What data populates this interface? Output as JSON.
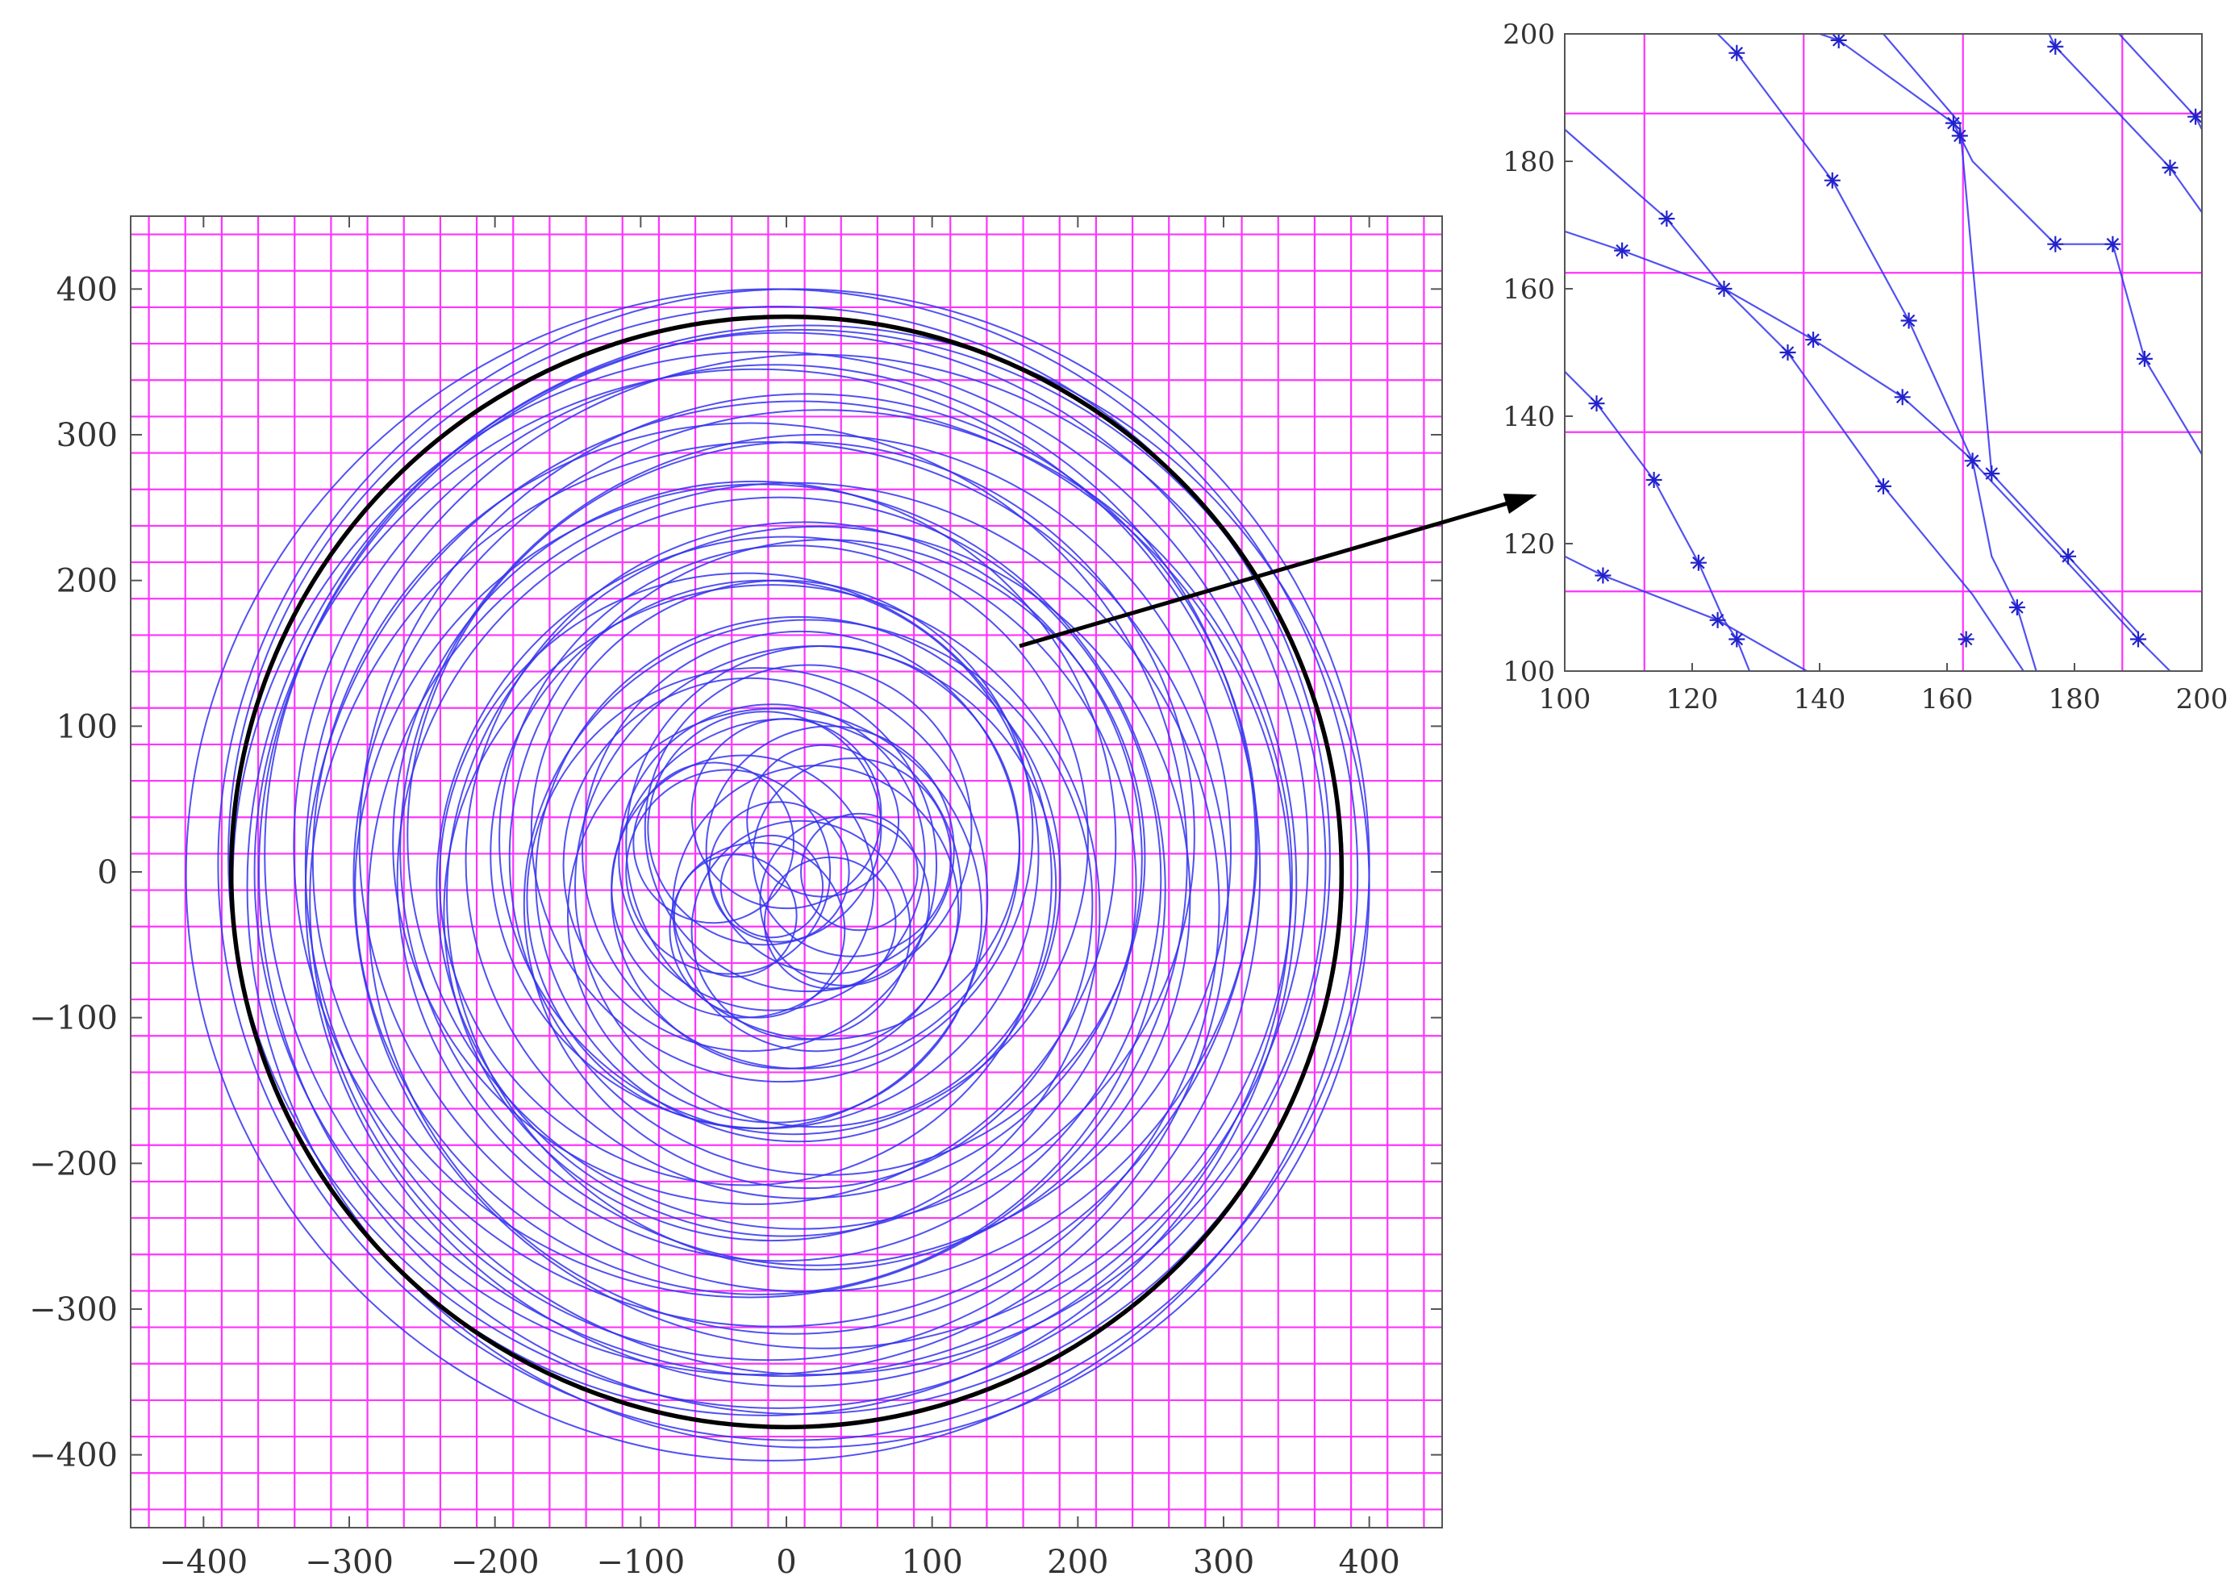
{
  "chart_data": [
    {
      "id": "main",
      "type": "line",
      "title": "",
      "xlabel": "",
      "ylabel": "",
      "xlim": [
        -450,
        450
      ],
      "ylim": [
        -450,
        450
      ],
      "x_ticks": [
        -400,
        -300,
        -200,
        -100,
        0,
        100,
        200,
        300,
        400
      ],
      "y_ticks": [
        -400,
        -300,
        -200,
        -100,
        0,
        100,
        200,
        300,
        400
      ],
      "x_tick_labels": [
        "−400",
        "−300",
        "−200",
        "−100",
        "0",
        "100",
        "200",
        "300",
        "400"
      ],
      "y_tick_labels": [
        "−400",
        "−300",
        "−200",
        "−100",
        "0",
        "100",
        "200",
        "300",
        "400"
      ],
      "grid": {
        "on": true,
        "spacing": 25,
        "offset": 12.5,
        "color": "#ff33ff"
      },
      "reference_circle": {
        "cx": 0,
        "cy": 0,
        "r": 381,
        "color": "#000000"
      },
      "circle_color": "#3333ee",
      "circles": [
        {
          "cx": -10,
          "cy": -2,
          "r": 402
        },
        {
          "cx": 5,
          "cy": 5,
          "r": 395
        },
        {
          "cx": 15,
          "cy": -10,
          "r": 385
        },
        {
          "cx": -5,
          "cy": 10,
          "r": 378
        },
        {
          "cx": 10,
          "cy": 0,
          "r": 372
        },
        {
          "cx": -15,
          "cy": -8,
          "r": 365
        },
        {
          "cx": 0,
          "cy": 12,
          "r": 358
        },
        {
          "cx": 20,
          "cy": 5,
          "r": 350
        },
        {
          "cx": -20,
          "cy": 0,
          "r": 345
        },
        {
          "cx": 8,
          "cy": -15,
          "r": 338
        },
        {
          "cx": -8,
          "cy": 18,
          "r": 330
        },
        {
          "cx": 25,
          "cy": -5,
          "r": 322
        },
        {
          "cx": -12,
          "cy": -20,
          "r": 315
        },
        {
          "cx": 15,
          "cy": 20,
          "r": 308
        },
        {
          "cx": -25,
          "cy": 8,
          "r": 300
        },
        {
          "cx": 5,
          "cy": -25,
          "r": 292
        },
        {
          "cx": 20,
          "cy": 15,
          "r": 285
        },
        {
          "cx": -18,
          "cy": -12,
          "r": 278
        },
        {
          "cx": 10,
          "cy": 25,
          "r": 270
        },
        {
          "cx": -5,
          "cy": -5,
          "r": 262
        },
        {
          "cx": 22,
          "cy": -18,
          "r": 255
        },
        {
          "cx": -22,
          "cy": 20,
          "r": 248
        },
        {
          "cx": 0,
          "cy": -10,
          "r": 240
        },
        {
          "cx": 12,
          "cy": 8,
          "r": 232
        },
        {
          "cx": -10,
          "cy": -28,
          "r": 225
        },
        {
          "cx": 28,
          "cy": 10,
          "r": 218
        },
        {
          "cx": -28,
          "cy": -5,
          "r": 210
        },
        {
          "cx": 5,
          "cy": 22,
          "r": 202
        },
        {
          "cx": 15,
          "cy": -22,
          "r": 195
        },
        {
          "cx": -15,
          "cy": 12,
          "r": 188
        },
        {
          "cx": 8,
          "cy": -5,
          "r": 180
        },
        {
          "cx": -3,
          "cy": 28,
          "r": 172
        },
        {
          "cx": 20,
          "cy": -10,
          "r": 165
        },
        {
          "cx": -20,
          "cy": -18,
          "r": 158
        },
        {
          "cx": 10,
          "cy": 15,
          "r": 150
        },
        {
          "cx": -8,
          "cy": -30,
          "r": 142
        },
        {
          "cx": 25,
          "cy": 20,
          "r": 135
        },
        {
          "cx": -25,
          "cy": 5,
          "r": 128
        },
        {
          "cx": 0,
          "cy": -15,
          "r": 120
        },
        {
          "cx": 15,
          "cy": 30,
          "r": 112
        },
        {
          "cx": -10,
          "cy": 10,
          "r": 105
        },
        {
          "cx": 20,
          "cy": -25,
          "r": 98
        },
        {
          "cx": -30,
          "cy": -10,
          "r": 90
        },
        {
          "cx": 30,
          "cy": 15,
          "r": 85
        },
        {
          "cx": -15,
          "cy": 30,
          "r": 80
        },
        {
          "cx": 10,
          "cy": -40,
          "r": 75
        },
        {
          "cx": -40,
          "cy": 0,
          "r": 70
        },
        {
          "cx": 45,
          "cy": 10,
          "r": 68
        },
        {
          "cx": 0,
          "cy": 40,
          "r": 65
        },
        {
          "cx": -20,
          "cy": -40,
          "r": 60
        },
        {
          "cx": 40,
          "cy": -20,
          "r": 58
        },
        {
          "cx": -50,
          "cy": 20,
          "r": 55
        },
        {
          "cx": 25,
          "cy": 35,
          "r": 52
        },
        {
          "cx": -5,
          "cy": 0,
          "r": 48
        },
        {
          "cx": 30,
          "cy": -35,
          "r": 45
        },
        {
          "cx": -35,
          "cy": -30,
          "r": 42
        },
        {
          "cx": 50,
          "cy": 0,
          "r": 40
        },
        {
          "cx": -10,
          "cy": -10,
          "r": 35
        }
      ]
    },
    {
      "id": "inset",
      "type": "line",
      "title": "",
      "xlabel": "",
      "ylabel": "",
      "xlim": [
        100,
        200
      ],
      "ylim": [
        100,
        200
      ],
      "x_ticks": [
        100,
        120,
        140,
        160,
        180,
        200
      ],
      "y_ticks": [
        100,
        120,
        140,
        160,
        180,
        200
      ],
      "x_tick_labels": [
        "100",
        "120",
        "140",
        "160",
        "180",
        "200"
      ],
      "y_tick_labels": [
        "100",
        "120",
        "140",
        "160",
        "180",
        "200"
      ],
      "grid_lines_x": [
        112.5,
        137.5,
        162.5,
        187.5
      ],
      "grid_lines_y": [
        112.5,
        137.5,
        162.5,
        187.5
      ],
      "grid_color": "#ff33ff",
      "line_color": "#3333ee",
      "arrow": {
        "from": [
          160,
          155
        ],
        "to_inset": [
          100,
          130
        ]
      },
      "lines": [
        {
          "points": [
            [
              100,
              118
            ],
            [
              106,
              115
            ],
            [
              124,
              108
            ],
            [
              138,
              100
            ]
          ]
        },
        {
          "points": [
            [
              100,
              147
            ],
            [
              105,
              142
            ],
            [
              114,
              130
            ],
            [
              121,
              117
            ],
            [
              125,
              108
            ],
            [
              127,
              105
            ],
            [
              129,
              100
            ]
          ]
        },
        {
          "points": [
            [
              100,
              169
            ],
            [
              109,
              166
            ],
            [
              125,
              160
            ],
            [
              139,
              152
            ],
            [
              153,
              143
            ],
            [
              163,
              134
            ],
            [
              178,
              118
            ],
            [
              190,
              105
            ],
            [
              195,
              100
            ]
          ]
        },
        {
          "points": [
            [
              100,
              185
            ],
            [
              116,
              171
            ],
            [
              125,
              160
            ],
            [
              135,
              150
            ],
            [
              150,
              129
            ],
            [
              164,
              112
            ],
            [
              172,
              100
            ]
          ]
        },
        {
          "points": [
            [
              124,
              200
            ],
            [
              127,
              197
            ],
            [
              142,
              177
            ],
            [
              154,
              155
            ],
            [
              164,
              133
            ],
            [
              167,
              118
            ],
            [
              171,
              110
            ],
            [
              174,
              100
            ]
          ]
        },
        {
          "points": [
            [
              140,
              200
            ],
            [
              143,
              199
            ],
            [
              161,
              186
            ],
            [
              162,
              184
            ],
            [
              164,
              180
            ],
            [
              177,
              167
            ],
            [
              186,
              167
            ],
            [
              191,
              149
            ],
            [
              200,
              134
            ]
          ]
        },
        {
          "points": [
            [
              150,
              200
            ],
            [
              162,
              186
            ],
            [
              167,
              131
            ],
            [
              179,
              118
            ],
            [
              190,
              106
            ]
          ]
        },
        {
          "points": [
            [
              176,
              200
            ],
            [
              177,
              198
            ],
            [
              195,
              179
            ],
            [
              200,
              172
            ]
          ]
        },
        {
          "points": [
            [
              187,
              200
            ],
            [
              199,
              187
            ],
            [
              200,
              185
            ]
          ]
        }
      ],
      "markers": [
        [
          106,
          115
        ],
        [
          124,
          108
        ],
        [
          127,
          105
        ],
        [
          105,
          142
        ],
        [
          114,
          130
        ],
        [
          121,
          117
        ],
        [
          109,
          166
        ],
        [
          116,
          171
        ],
        [
          125,
          160
        ],
        [
          135,
          150
        ],
        [
          139,
          152
        ],
        [
          127,
          197
        ],
        [
          143,
          199
        ],
        [
          142,
          177
        ],
        [
          161,
          186
        ],
        [
          162,
          184
        ],
        [
          154,
          155
        ],
        [
          153,
          143
        ],
        [
          150,
          129
        ],
        [
          164,
          133
        ],
        [
          167,
          131
        ],
        [
          163,
          105
        ],
        [
          171,
          110
        ],
        [
          177,
          167
        ],
        [
          177,
          198
        ],
        [
          186,
          167
        ],
        [
          191,
          149
        ],
        [
          195,
          179
        ],
        [
          199,
          187
        ],
        [
          179,
          118
        ],
        [
          190,
          105
        ]
      ]
    }
  ]
}
